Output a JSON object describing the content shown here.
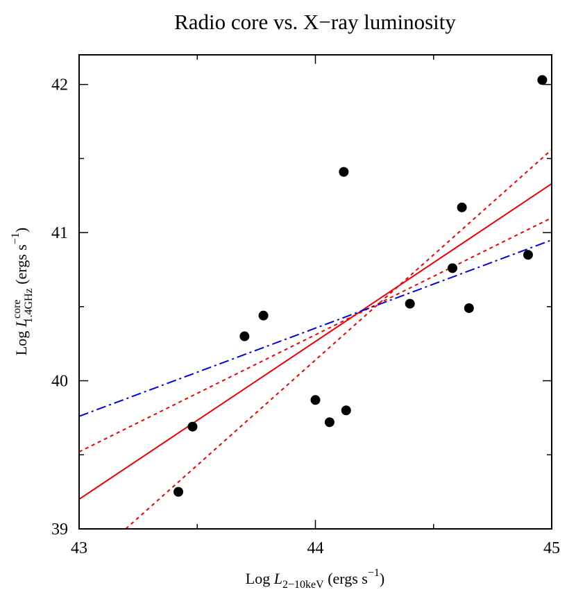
{
  "chart_data": {
    "type": "scatter",
    "title": "Radio core vs. X−ray luminosity",
    "xlabel": {
      "prefix": "Log ",
      "symbol": "L",
      "subscript": "2−10keV",
      "suffix": " (ergs s",
      "superscript": "−1",
      "close": ")"
    },
    "ylabel": {
      "prefix": "Log ",
      "symbol": "L",
      "superscript_top": "core",
      "subscript": "1.4GHz",
      "suffix": " (ergs s",
      "superscript": "−1",
      "close": ")"
    },
    "xlim": [
      43,
      45
    ],
    "ylim": [
      39,
      42.2
    ],
    "xticks": [
      43,
      44,
      45
    ],
    "xtick_labels": [
      "43",
      "44",
      "45"
    ],
    "yticks": [
      39,
      40,
      41,
      42
    ],
    "ytick_labels": [
      "39",
      "40",
      "41",
      "42"
    ],
    "grid": false,
    "legend": "none",
    "points": [
      {
        "x": 43.42,
        "y": 39.25
      },
      {
        "x": 43.48,
        "y": 39.69
      },
      {
        "x": 43.7,
        "y": 40.3
      },
      {
        "x": 43.78,
        "y": 40.44
      },
      {
        "x": 44.0,
        "y": 39.87
      },
      {
        "x": 44.06,
        "y": 39.72
      },
      {
        "x": 44.12,
        "y": 41.41
      },
      {
        "x": 44.13,
        "y": 39.8
      },
      {
        "x": 44.4,
        "y": 40.52
      },
      {
        "x": 44.58,
        "y": 40.76
      },
      {
        "x": 44.62,
        "y": 41.17
      },
      {
        "x": 44.65,
        "y": 40.49
      },
      {
        "x": 44.9,
        "y": 40.85
      },
      {
        "x": 44.96,
        "y": 42.03
      }
    ],
    "lines": [
      {
        "style": "solid",
        "color": "#ee0000",
        "x": [
          43,
          45
        ],
        "y": [
          39.2,
          41.33
        ]
      },
      {
        "style": "dotted",
        "color": "#ee0000",
        "x": [
          43,
          45
        ],
        "y": [
          38.72,
          41.56
        ]
      },
      {
        "style": "dotted",
        "color": "#ee0000",
        "x": [
          43,
          45
        ],
        "y": [
          39.52,
          41.1
        ]
      },
      {
        "style": "dashdot",
        "color": "#0000dd",
        "x": [
          43,
          45
        ],
        "y": [
          39.76,
          40.95
        ]
      }
    ]
  }
}
